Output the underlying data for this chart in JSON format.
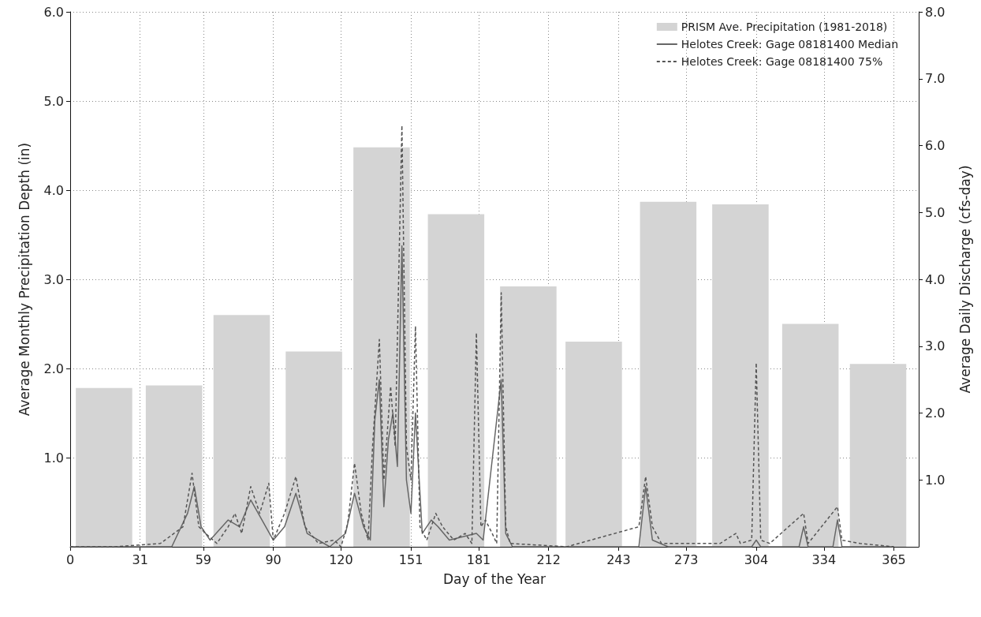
{
  "chart_data": {
    "type": "bar",
    "xlabel": "Day of the Year",
    "ylabel": "Average Monthly Precipitation Depth (in)",
    "y2label": "Average Daily Discharge (cfs-day)",
    "xlim": [
      0,
      376
    ],
    "xticks": [
      0,
      31,
      59,
      90,
      120,
      151,
      181,
      212,
      243,
      273,
      304,
      334,
      365
    ],
    "ylim": [
      0,
      6
    ],
    "yticks": [
      {
        "value": 1,
        "label": "1.0"
      },
      {
        "value": 2,
        "label": "2.0"
      },
      {
        "value": 3,
        "label": "3.0"
      },
      {
        "value": 4,
        "label": "4.0"
      },
      {
        "value": 5,
        "label": "5.0"
      },
      {
        "value": 6,
        "label": "6.0"
      }
    ],
    "y2lim": [
      0,
      8
    ],
    "y2ticks": [
      {
        "value": 1,
        "label": "1.0"
      },
      {
        "value": 2,
        "label": "2.0"
      },
      {
        "value": 3,
        "label": "3.0"
      },
      {
        "value": 4,
        "label": "4.0"
      },
      {
        "value": 5,
        "label": "5.0"
      },
      {
        "value": 6,
        "label": "6.0"
      },
      {
        "value": 7,
        "label": "7.0"
      },
      {
        "value": 8,
        "label": "8.0"
      }
    ],
    "grid": true,
    "legend": "top right",
    "series": [
      {
        "name": "PRISM Ave. Precipitation (1981-2018)",
        "color": "#d4d4d4",
        "x": [
          15,
          46,
          76,
          108,
          138,
          171,
          203,
          232,
          265,
          297,
          328,
          358
        ],
        "values": [
          1.78,
          1.81,
          2.6,
          2.19,
          4.48,
          3.73,
          2.92,
          2.3,
          3.87,
          3.84,
          2.5,
          2.05
        ]
      },
      {
        "name": "Helotes Creek: Gage 08181400 Median",
        "type": "line",
        "axis": "y2",
        "line_style": "solid",
        "color": "#666666",
        "x": [
          0,
          45,
          52,
          55,
          58,
          62,
          70,
          75,
          80,
          85,
          90,
          95,
          100,
          105,
          115,
          122,
          126,
          130,
          133,
          135,
          137,
          139,
          141,
          143,
          145,
          147,
          149,
          151,
          153,
          156,
          160,
          163,
          168,
          180,
          183,
          191,
          193,
          196,
          252,
          255,
          258,
          265,
          302,
          304,
          306,
          323,
          325,
          327,
          338,
          340,
          342,
          365
        ],
        "values": [
          0,
          0,
          0.5,
          0.9,
          0.3,
          0.1,
          0.4,
          0.3,
          0.7,
          0.4,
          0.1,
          0.3,
          0.8,
          0.2,
          0,
          0.2,
          0.8,
          0.3,
          0.1,
          1.9,
          2.5,
          0.6,
          1.6,
          2.0,
          1.2,
          4.5,
          1.0,
          0.5,
          2.0,
          0.2,
          0.4,
          0.3,
          0.1,
          0.2,
          0.1,
          2.5,
          0.2,
          0,
          0,
          0.9,
          0.1,
          0,
          0,
          0.1,
          0,
          0,
          0.3,
          0,
          0,
          0.4,
          0,
          0
        ]
      },
      {
        "name": "Helotes Creek: Gage 08181400 75%",
        "type": "line",
        "axis": "y2",
        "line_style": "dashed",
        "color": "#555555",
        "x": [
          0,
          20,
          40,
          50,
          54,
          57,
          60,
          65,
          70,
          73,
          76,
          80,
          84,
          88,
          90,
          95,
          100,
          104,
          110,
          117,
          120,
          123,
          126,
          129,
          132,
          134,
          137,
          139,
          142,
          144,
          147,
          149,
          151,
          153,
          155,
          158,
          162,
          165,
          170,
          175,
          178,
          180,
          182,
          184,
          187,
          189,
          191,
          193,
          195,
          220,
          252,
          255,
          258,
          262,
          280,
          288,
          295,
          297,
          302,
          304,
          306,
          310,
          325,
          327,
          340,
          342,
          350,
          365
        ],
        "values": [
          0,
          0,
          0.05,
          0.3,
          1.1,
          0.3,
          0.2,
          0.05,
          0.3,
          0.5,
          0.2,
          0.9,
          0.5,
          0.95,
          0.1,
          0.5,
          1.05,
          0.3,
          0.05,
          0.1,
          0,
          0.35,
          1.25,
          0.5,
          0.1,
          1.5,
          3.1,
          1.0,
          2.4,
          1.5,
          6.3,
          1.5,
          1.0,
          3.3,
          0.3,
          0.1,
          0.5,
          0.3,
          0.1,
          0.2,
          0.05,
          3.2,
          0.3,
          0.4,
          0.2,
          0.05,
          3.8,
          0.3,
          0.05,
          0,
          0.3,
          1.05,
          0.3,
          0.05,
          0.05,
          0.05,
          0.2,
          0.05,
          0.1,
          2.75,
          0.1,
          0.05,
          0.5,
          0.05,
          0.6,
          0.1,
          0.05,
          0
        ]
      }
    ]
  }
}
